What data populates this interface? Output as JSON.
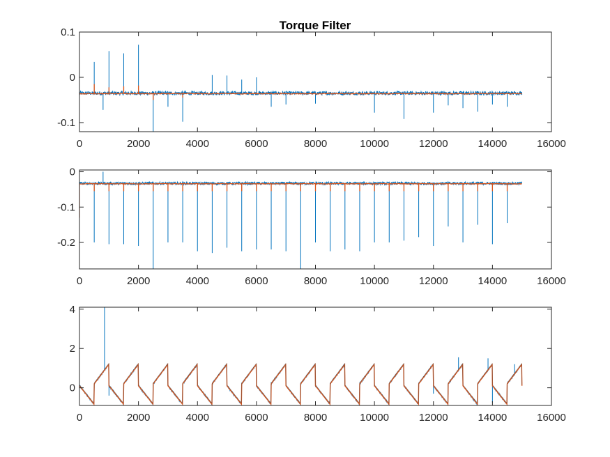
{
  "figure": {
    "title": "Torque Filter"
  },
  "chart_data": [
    {
      "type": "line",
      "title": "Torque Filter",
      "xlabel": "",
      "ylabel": "",
      "xlim": [
        0,
        16000
      ],
      "ylim": [
        -0.12,
        0.1
      ],
      "xticks": [
        0,
        2000,
        4000,
        6000,
        8000,
        10000,
        12000,
        14000,
        16000
      ],
      "yticks": [
        -0.1,
        0,
        0.1
      ],
      "ytick_labels": [
        "-0.1",
        "0",
        "0.1"
      ],
      "colors": {
        "raw": "#0072BD",
        "filtered": "#D95319"
      },
      "series": [
        {
          "role": "raw",
          "baseline": -0.035,
          "noise": 0.004,
          "x_end": 15000,
          "spikes": [
            {
              "x": 500,
              "y": 0.034
            },
            {
              "x": 800,
              "y": -0.072
            },
            {
              "x": 1000,
              "y": 0.058
            },
            {
              "x": 1500,
              "y": 0.053
            },
            {
              "x": 2000,
              "y": 0.072
            },
            {
              "x": 2500,
              "y": -0.12
            },
            {
              "x": 3000,
              "y": -0.065
            },
            {
              "x": 3500,
              "y": -0.098
            },
            {
              "x": 4500,
              "y": 0.005
            },
            {
              "x": 5000,
              "y": 0.004
            },
            {
              "x": 5500,
              "y": -0.005
            },
            {
              "x": 6000,
              "y": 0.0
            },
            {
              "x": 6500,
              "y": -0.065
            },
            {
              "x": 7000,
              "y": -0.06
            },
            {
              "x": 8000,
              "y": -0.058
            },
            {
              "x": 10000,
              "y": -0.078
            },
            {
              "x": 11000,
              "y": -0.092
            },
            {
              "x": 12000,
              "y": -0.078
            },
            {
              "x": 12500,
              "y": -0.062
            },
            {
              "x": 13000,
              "y": -0.068
            },
            {
              "x": 13500,
              "y": -0.076
            },
            {
              "x": 14000,
              "y": -0.06
            },
            {
              "x": 14500,
              "y": -0.065
            }
          ]
        },
        {
          "role": "filtered",
          "baseline": -0.036,
          "x_end": 15000,
          "spikes": [
            {
              "x": 500,
              "y": -0.015
            },
            {
              "x": 1000,
              "y": -0.022
            },
            {
              "x": 1500,
              "y": -0.02
            },
            {
              "x": 2000,
              "y": -0.018
            },
            {
              "x": 2500,
              "y": -0.05
            },
            {
              "x": 3500,
              "y": -0.045
            }
          ]
        }
      ]
    },
    {
      "type": "line",
      "title": "",
      "xlabel": "",
      "ylabel": "",
      "xlim": [
        0,
        16000
      ],
      "ylim": [
        -0.275,
        0.005
      ],
      "xticks": [
        0,
        2000,
        4000,
        6000,
        8000,
        10000,
        12000,
        14000,
        16000
      ],
      "yticks": [
        -0.2,
        -0.1,
        0
      ],
      "ytick_labels": [
        "-0.2",
        "-0.1",
        "0"
      ],
      "colors": {
        "raw": "#0072BD",
        "filtered": "#D95319"
      },
      "series": [
        {
          "role": "raw",
          "baseline": -0.033,
          "noise": 0.004,
          "x_end": 15000,
          "spikes": [
            {
              "x": 500,
              "y": -0.2
            },
            {
              "x": 800,
              "y": 0.0
            },
            {
              "x": 1000,
              "y": -0.205
            },
            {
              "x": 1500,
              "y": -0.205
            },
            {
              "x": 2000,
              "y": -0.21
            },
            {
              "x": 2500,
              "y": -0.275
            },
            {
              "x": 3000,
              "y": -0.2
            },
            {
              "x": 3500,
              "y": -0.2
            },
            {
              "x": 4000,
              "y": -0.225
            },
            {
              "x": 4500,
              "y": -0.23
            },
            {
              "x": 5000,
              "y": -0.215
            },
            {
              "x": 5500,
              "y": -0.225
            },
            {
              "x": 6000,
              "y": -0.22
            },
            {
              "x": 6500,
              "y": -0.22
            },
            {
              "x": 7000,
              "y": -0.225
            },
            {
              "x": 7500,
              "y": -0.275
            },
            {
              "x": 8000,
              "y": -0.2
            },
            {
              "x": 8500,
              "y": -0.225
            },
            {
              "x": 9000,
              "y": -0.22
            },
            {
              "x": 9500,
              "y": -0.225
            },
            {
              "x": 10000,
              "y": -0.2
            },
            {
              "x": 10500,
              "y": -0.2
            },
            {
              "x": 11000,
              "y": -0.195
            },
            {
              "x": 11500,
              "y": -0.185
            },
            {
              "x": 12000,
              "y": -0.21
            },
            {
              "x": 12500,
              "y": -0.155
            },
            {
              "x": 13000,
              "y": -0.2
            },
            {
              "x": 13500,
              "y": -0.15
            },
            {
              "x": 14000,
              "y": -0.205
            },
            {
              "x": 14500,
              "y": -0.145
            }
          ]
        },
        {
          "role": "filtered",
          "baseline": -0.034,
          "x_end": 15000,
          "start_dip": -0.13,
          "spike_depth": -0.055,
          "spike_step": 500
        }
      ]
    },
    {
      "type": "line",
      "title": "",
      "xlabel": "",
      "ylabel": "",
      "xlim": [
        0,
        16000
      ],
      "ylim": [
        -0.9,
        4.1
      ],
      "xticks": [
        0,
        2000,
        4000,
        6000,
        8000,
        10000,
        12000,
        14000,
        16000
      ],
      "yticks": [
        0,
        2,
        4
      ],
      "ytick_labels": [
        "0",
        "2",
        "4"
      ],
      "colors": {
        "raw": "#0072BD",
        "filtered": "#D95319",
        "overlap": "#525252"
      },
      "series": [
        {
          "role": "sawtooth",
          "period": 1000,
          "phases": [
            {
              "from": 0,
              "to": 0.5,
              "y_start": 0.1,
              "y_end": -0.85
            },
            {
              "from": 0.5,
              "to": 1.0,
              "y_start": 0.2,
              "y_end": 1.2
            }
          ],
          "x_end": 15000,
          "raw_spikes": [
            {
              "x": 850,
              "y": 4.1
            },
            {
              "x": 12850,
              "y": 1.55
            },
            {
              "x": 13850,
              "y": 1.5
            },
            {
              "x": 14000,
              "y": -0.75
            },
            {
              "x": 14750,
              "y": 1.2
            },
            {
              "x": 1000,
              "y": -0.4
            },
            {
              "x": 12000,
              "y": -0.3
            },
            {
              "x": 12500,
              "y": -0.35
            }
          ]
        }
      ]
    }
  ]
}
